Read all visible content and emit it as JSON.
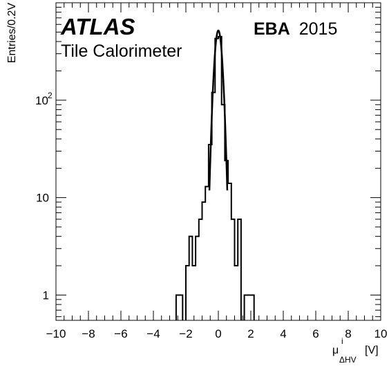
{
  "chart_data": {
    "type": "histogram",
    "experiment": "ATLAS",
    "subtitle": "Tile Calorimeter",
    "partition": "EBA",
    "year": "2015",
    "xlabel": {
      "base": "μ",
      "superscript": "i",
      "subscript": "ΔHV",
      "unit": "[V]"
    },
    "ylabel": "Entries/0.2V",
    "xlim": [
      -10,
      10
    ],
    "ylim": [
      0.55,
      1000
    ],
    "yscale": "log",
    "x_ticks": [
      -10,
      -8,
      -6,
      -4,
      -2,
      0,
      2,
      4,
      6,
      8,
      10
    ],
    "x_tick_labels": [
      "−10",
      "−8",
      "−6",
      "−4",
      "−2",
      "0",
      "2",
      "4",
      "6",
      "8",
      "10"
    ],
    "y_ticks": [
      {
        "value": 1,
        "label": "1"
      },
      {
        "value": 10,
        "label": "10"
      },
      {
        "value": 100,
        "base": "10",
        "exp": "2"
      }
    ],
    "bin_width": 0.2,
    "bins": [
      {
        "x0": -2.6,
        "x1": -2.4,
        "y": 1
      },
      {
        "x0": -2.4,
        "x1": -2.2,
        "y": 1
      },
      {
        "x0": -2.0,
        "x1": -1.8,
        "y": 2
      },
      {
        "x0": -1.8,
        "x1": -1.6,
        "y": 4
      },
      {
        "x0": -1.6,
        "x1": -1.4,
        "y": 2
      },
      {
        "x0": -1.4,
        "x1": -1.2,
        "y": 4
      },
      {
        "x0": -1.2,
        "x1": -1.0,
        "y": 6
      },
      {
        "x0": -1.0,
        "x1": -0.8,
        "y": 9
      },
      {
        "x0": -0.8,
        "x1": -0.6,
        "y": 13
      },
      {
        "x0": -0.6,
        "x1": -0.4,
        "y": 35
      },
      {
        "x0": -0.4,
        "x1": -0.2,
        "y": 120
      },
      {
        "x0": -0.2,
        "x1": 0.0,
        "y": 430
      },
      {
        "x0": 0.0,
        "x1": 0.2,
        "y": 450
      },
      {
        "x0": 0.2,
        "x1": 0.4,
        "y": 90
      },
      {
        "x0": 0.4,
        "x1": 0.6,
        "y": 24
      },
      {
        "x0": 0.6,
        "x1": 0.8,
        "y": 14
      },
      {
        "x0": 0.8,
        "x1": 1.0,
        "y": 6
      },
      {
        "x0": 1.0,
        "x1": 1.2,
        "y": 2
      },
      {
        "x0": 1.2,
        "x1": 1.4,
        "y": 6
      },
      {
        "x0": 1.6,
        "x1": 1.8,
        "y": 1
      },
      {
        "x0": 1.8,
        "x1": 2.0,
        "y": 1
      },
      {
        "x0": 2.0,
        "x1": 2.2,
        "y": 1
      }
    ],
    "fit": {
      "type": "gaussian",
      "amplitude": 520,
      "mean": 0.0,
      "sigma": 0.2,
      "range": [
        -0.55,
        0.55
      ]
    },
    "grid": false,
    "colors": {
      "line": "#000000",
      "background": "#ffffff"
    }
  }
}
